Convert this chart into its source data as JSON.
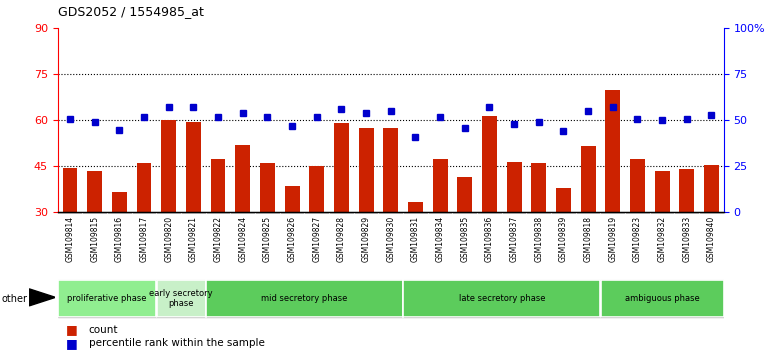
{
  "title": "GDS2052 / 1554985_at",
  "samples": [
    "GSM109814",
    "GSM109815",
    "GSM109816",
    "GSM109817",
    "GSM109820",
    "GSM109821",
    "GSM109822",
    "GSM109824",
    "GSM109825",
    "GSM109826",
    "GSM109827",
    "GSM109828",
    "GSM109829",
    "GSM109830",
    "GSM109831",
    "GSM109834",
    "GSM109835",
    "GSM109836",
    "GSM109837",
    "GSM109838",
    "GSM109839",
    "GSM109818",
    "GSM109819",
    "GSM109823",
    "GSM109832",
    "GSM109833",
    "GSM109840"
  ],
  "counts": [
    44.5,
    43.5,
    36.5,
    46.0,
    60.0,
    59.5,
    47.5,
    52.0,
    46.0,
    38.5,
    45.0,
    59.0,
    57.5,
    57.5,
    33.5,
    47.5,
    41.5,
    61.5,
    46.5,
    46.0,
    38.0,
    51.5,
    70.0,
    47.5,
    43.5,
    44.0,
    45.5
  ],
  "percentiles": [
    51,
    49,
    45,
    52,
    57,
    57,
    52,
    54,
    52,
    47,
    52,
    56,
    54,
    55,
    41,
    52,
    46,
    57,
    48,
    49,
    44,
    55,
    57,
    51,
    50,
    51,
    53
  ],
  "phases": [
    {
      "name": "proliferative phase",
      "color": "#90EE90",
      "start": 0,
      "end": 4
    },
    {
      "name": "early secretory\nphase",
      "color": "#c8f0c8",
      "start": 4,
      "end": 6
    },
    {
      "name": "mid secretory phase",
      "color": "#5ccc5c",
      "start": 6,
      "end": 14
    },
    {
      "name": "late secretory phase",
      "color": "#5ccc5c",
      "start": 14,
      "end": 22
    },
    {
      "name": "ambiguous phase",
      "color": "#5ccc5c",
      "start": 22,
      "end": 27
    }
  ],
  "bar_color": "#CC2200",
  "dot_color": "#0000CC",
  "ylim_left": [
    30,
    90
  ],
  "ylim_right": [
    0,
    100
  ],
  "yticks_left": [
    30,
    45,
    60,
    75,
    90
  ],
  "yticks_right": [
    0,
    25,
    50,
    75,
    100
  ],
  "yticklabels_right": [
    "0",
    "25",
    "50",
    "75",
    "100%"
  ],
  "other_label": "other",
  "chart_bg": "white",
  "xticklabel_bg": "#d8d8d8"
}
